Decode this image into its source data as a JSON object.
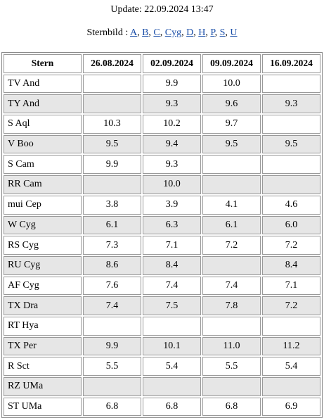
{
  "header": {
    "update": "Update: 22.09.2024 13:47"
  },
  "sternbild": {
    "label": "Sternbild :",
    "separator": ",",
    "links": [
      "A",
      "B",
      "C",
      "Cyg",
      "D",
      "H",
      "P",
      "S",
      "U"
    ]
  },
  "table": {
    "columns": [
      "Stern",
      "26.08.2024",
      "02.09.2024",
      "09.09.2024",
      "16.09.2024"
    ],
    "rows": [
      [
        "TV And",
        null,
        "9.9",
        "10.0",
        null
      ],
      [
        "TY And",
        null,
        "9.3",
        "9.6",
        "9.3"
      ],
      [
        "S Aql",
        "10.3",
        "10.2",
        "9.7",
        null
      ],
      [
        "V Boo",
        "9.5",
        "9.4",
        "9.5",
        "9.5"
      ],
      [
        "S Cam",
        "9.9",
        "9.3",
        null,
        null
      ],
      [
        "RR Cam",
        null,
        "10.0",
        null,
        null
      ],
      [
        "mui Cep",
        "3.8",
        "3.9",
        "4.1",
        "4.6"
      ],
      [
        "W Cyg",
        "6.1",
        "6.3",
        "6.1",
        "6.0"
      ],
      [
        "RS Cyg",
        "7.3",
        "7.1",
        "7.2",
        "7.2"
      ],
      [
        "RU Cyg",
        "8.6",
        "8.4",
        null,
        "8.4"
      ],
      [
        "AF Cyg",
        "7.6",
        "7.4",
        "7.4",
        "7.1"
      ],
      [
        "TX Dra",
        "7.4",
        "7.5",
        "7.8",
        "7.2"
      ],
      [
        "RT Hya",
        null,
        null,
        null,
        null
      ],
      [
        "TX Per",
        "9.9",
        "10.1",
        "11.0",
        "11.2"
      ],
      [
        "R Sct",
        "5.5",
        "5.4",
        "5.5",
        "5.4"
      ],
      [
        "RZ UMa",
        null,
        null,
        null,
        null
      ],
      [
        "ST UMa",
        "6.8",
        "6.8",
        "6.8",
        "6.9"
      ]
    ]
  }
}
